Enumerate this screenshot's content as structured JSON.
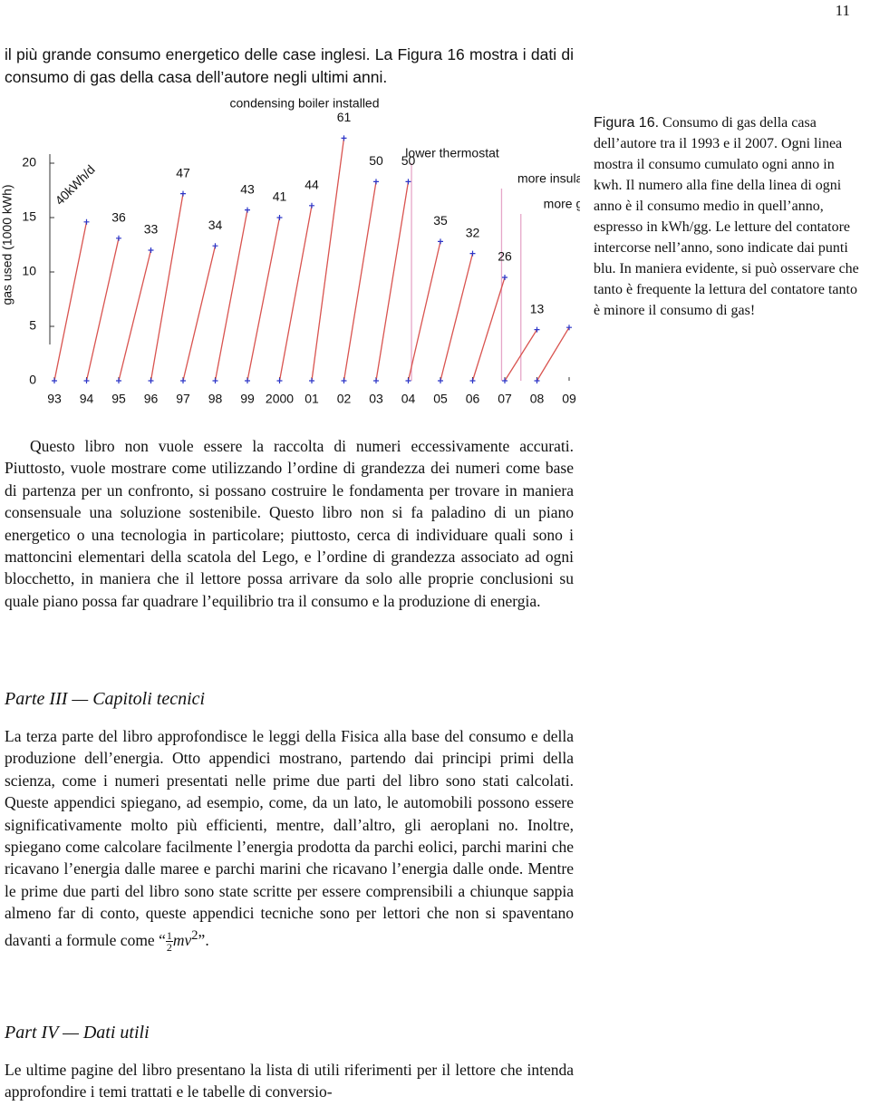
{
  "page_number": "11",
  "intro": "il più grande consumo energetico delle case inglesi. La Figura 16 mostra i dati di consumo di gas della casa dell’autore negli ultimi anni.",
  "chart_data": {
    "type": "line",
    "y_label": "gas used (1000 kWh)",
    "xlim": [
      1993,
      2009
    ],
    "ylim": [
      0,
      22.5
    ],
    "yticks": [
      0,
      5,
      10,
      15,
      20
    ],
    "xticks": [
      {
        "value": 1993,
        "label": "93"
      },
      {
        "value": 1994,
        "label": "94"
      },
      {
        "value": 1995,
        "label": "95"
      },
      {
        "value": 1996,
        "label": "96"
      },
      {
        "value": 1997,
        "label": "97"
      },
      {
        "value": 1998,
        "label": "98"
      },
      {
        "value": 1999,
        "label": "99"
      },
      2000,
      {
        "value": 2001,
        "label": "01"
      },
      {
        "value": 2002,
        "label": "02"
      },
      {
        "value": 2003,
        "label": "03"
      },
      {
        "value": 2004,
        "label": "04"
      },
      {
        "value": 2005,
        "label": "05"
      },
      {
        "value": 2006,
        "label": "06"
      },
      {
        "value": 2007,
        "label": "07"
      },
      {
        "value": 2008,
        "label": "08"
      },
      {
        "value": 2009,
        "label": "09"
      }
    ],
    "color": "#d9534f",
    "marker_color": "#2b35c8",
    "annotation_color": "#e6a6c8",
    "series": [
      {
        "x": [
          1993,
          1994
        ],
        "values": [
          0,
          14.6
        ],
        "label": "40kWh/d"
      },
      {
        "x": [
          1994,
          1995
        ],
        "values": [
          0,
          13.1
        ],
        "label": "36"
      },
      {
        "x": [
          1995,
          1996
        ],
        "values": [
          0,
          12.0
        ],
        "label": "33"
      },
      {
        "x": [
          1996,
          1997
        ],
        "values": [
          0,
          17.2
        ],
        "label": "47"
      },
      {
        "x": [
          1997,
          1998
        ],
        "values": [
          0,
          12.4
        ],
        "label": "34"
      },
      {
        "x": [
          1998,
          1999
        ],
        "values": [
          0,
          15.7
        ],
        "label": "43"
      },
      {
        "x": [
          1999,
          2000
        ],
        "values": [
          0,
          15.0
        ],
        "label": "41"
      },
      {
        "x": [
          2000,
          2001
        ],
        "values": [
          0,
          16.1
        ],
        "label": "44"
      },
      {
        "x": [
          2001,
          2002
        ],
        "values": [
          0,
          22.3
        ],
        "label": "61"
      },
      {
        "x": [
          2002,
          2003
        ],
        "values": [
          0,
          18.3
        ],
        "label": "50"
      },
      {
        "x": [
          2003,
          2004
        ],
        "values": [
          0,
          18.3
        ],
        "label": "50"
      },
      {
        "x": [
          2004,
          2005
        ],
        "values": [
          0,
          12.8
        ],
        "label": "35"
      },
      {
        "x": [
          2005,
          2006
        ],
        "values": [
          0,
          11.7
        ],
        "label": "32"
      },
      {
        "x": [
          2006,
          2007
        ],
        "values": [
          0,
          9.5
        ],
        "label": "26"
      },
      {
        "x": [
          2007,
          2008
        ],
        "values": [
          0,
          4.7
        ],
        "label": "13"
      },
      {
        "x": [
          2008,
          2009
        ],
        "values": [
          0,
          4.9
        ]
      }
    ],
    "top_annotation": {
      "text": "condensing boiler installed",
      "x": 2001
    },
    "event_lines": [
      {
        "text": "lower thermostat",
        "x": 2004.1
      },
      {
        "text": "more insulation",
        "x": 2006.9
      },
      {
        "text": "more glazing",
        "x": 2007.5
      }
    ]
  },
  "caption": {
    "label": "Figura 16.",
    "text": "Consumo di gas della casa dell’autore tra il 1993 e il 2007. Ogni linea mostra il consumo cumulato ogni anno in kwh. Il numero alla fine della linea di ogni anno è il consumo medio in quell’anno, espresso in kWh/gg. Le letture del contatore intercorse nell’anno, sono indicate dai punti blu. In maniera evidente, si può osservare che tanto è frequente la lettura del contatore tanto è minore il consumo di gas!"
  },
  "paragraph": "Questo libro non vuole essere la raccolta di numeri eccessivamente accurati. Piuttosto, vuole mostrare come utilizzando l’ordine di grandezza dei numeri come base di partenza per un confronto, si possano costruire le fondamenta per trovare in maniera consensuale una soluzione sostenibile. Questo libro non si fa paladino di un piano energetico o una tecnologia in particolare; piuttosto, cerca di individuare quali sono i mattoncini elementari della scatola del Lego, e l’ordine di grandezza associato ad ogni blocchetto, in maniera che il lettore possa arrivare da solo alle proprie conclusioni su quale piano possa far quadrare l’equilibrio tra il consumo e la produzione di energia.",
  "sections": [
    {
      "heading": "Parte III — Capitoli tecnici",
      "text_before": "La terza parte del libro approfondisce le leggi della Fisica alla base del consumo e della produzione dell’energia. Otto appendici mostrano, partendo dai principi primi della scienza, come i numeri presentati nelle prime due parti del libro sono stati calcolati. Queste appendici spiegano, ad esempio, come, da un lato, le automobili possono essere significativamente molto più efficienti, mentre, dall’altro, gli aeroplani no. Inoltre, spiegano come calcolare facilmente l’energia prodotta da parchi eolici, parchi marini che ricavano l’energia dalle maree e parchi marini che ricavano l’energia dalle onde. Mentre le prime due parti del libro sono state scritte per essere comprensibili a chiunque sappia almeno far di conto, queste appendici tecniche sono per lettori che non si spaventano davanti a formule come “",
      "formula": {
        "numerator": "1",
        "denominator": "2",
        "expression": "mv",
        "exponent": "2"
      },
      "text_after": "”."
    },
    {
      "heading": "Part IV — Dati utili",
      "text_before": "Le ultime pagine del libro presentano la lista di utili riferimenti per il lettore che intenda approfondire i temi trattati e le tabelle di conversio-"
    }
  ]
}
